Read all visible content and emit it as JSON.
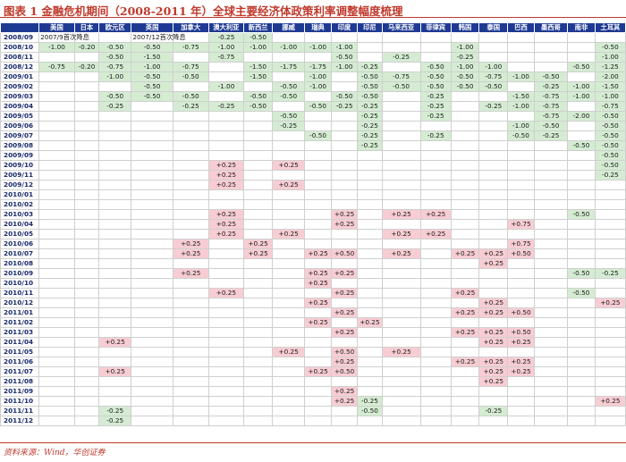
{
  "title": "图表 1   金融危机期间（2008-2011 年）全球主要经济体政策利率调整幅度梳理",
  "source": "资料来源：Wind，华创证券",
  "colors": {
    "cut": "#d5ecd3",
    "hike": "#f7cdd3",
    "header": "#1f3a93",
    "accent": "#c0392b"
  },
  "chart_data": {
    "type": "table",
    "columns": [
      "",
      "美国",
      "日本",
      "欧元区",
      "英国",
      "加拿大",
      "澳大利亚",
      "新西兰",
      "挪威",
      "瑞典",
      "印度",
      "印尼",
      "马来西亚",
      "菲律宾",
      "韩国",
      "泰国",
      "巴西",
      "墨西哥",
      "南非",
      "土耳其"
    ],
    "rows": [
      [
        "2008/09",
        "-",
        "-",
        "-",
        "-",
        "-",
        "-0.25",
        "-0.50",
        "-",
        "-",
        "-",
        "-",
        "-",
        "-",
        "-",
        "-",
        "-",
        "-",
        "-",
        "-"
      ],
      [
        "2008/10",
        "-1.00",
        "-0.20",
        "-0.50",
        "-0.50",
        "-0.75",
        "-1.00",
        "-1.00",
        "-1.00",
        "-1.00",
        "-1.00",
        "-",
        "-",
        "-",
        "-1.00",
        "-",
        "-",
        "-",
        "-",
        "-0.50"
      ],
      [
        "2008/11",
        "-",
        "-",
        "-0.50",
        "-1.50",
        "-",
        "-0.75",
        "-",
        "-",
        "-",
        "-0.50",
        "-",
        "-0.25",
        "-",
        "-0.25",
        "-",
        "-",
        "-",
        "-",
        "-1.00"
      ],
      [
        "2008/12",
        "-0.75",
        "-0.20",
        "-0.75",
        "-1.00",
        "-0.75",
        "-",
        "-1.50",
        "-1.75",
        "-1.75",
        "-1.00",
        "-0.25",
        "-",
        "-0.50",
        "-1.00",
        "-1.00",
        "-",
        "-",
        "-0.50",
        "-1.25"
      ],
      [
        "2009/01",
        "-",
        "-",
        "-1.00",
        "-0.50",
        "-0.50",
        "-",
        "-1.50",
        "-",
        "-1.00",
        "-",
        "-0.50",
        "-0.75",
        "-0.50",
        "-0.50",
        "-0.75",
        "-1.00",
        "-0.50",
        "-",
        "-2.00"
      ],
      [
        "2009/02",
        "-",
        "-",
        "-",
        "-0.50",
        "-",
        "-1.00",
        "-",
        "-0.50",
        "-1.00",
        "-",
        "-0.50",
        "-0.50",
        "-0.50",
        "-0.50",
        "-0.50",
        "-",
        "-0.25",
        "-1.00",
        "-1.50"
      ],
      [
        "2009/03",
        "-",
        "-",
        "-0.50",
        "-0.50",
        "-0.50",
        "-",
        "-0.50",
        "-0.50",
        "-",
        "-0.50",
        "-0.50",
        "-",
        "-0.25",
        "-",
        "-",
        "-1.50",
        "-0.75",
        "-1.00",
        "-1.00"
      ],
      [
        "2009/04",
        "-",
        "-",
        "-0.25",
        "-",
        "-0.25",
        "-0.25",
        "-0.50",
        "-",
        "-0.50",
        "-0.25",
        "-0.25",
        "-",
        "-0.25",
        "-",
        "-0.25",
        "-1.00",
        "-0.75",
        "-",
        "-0.75"
      ],
      [
        "2009/05",
        "-",
        "-",
        "-",
        "-",
        "-",
        "-",
        "-",
        "-0.50",
        "-",
        "-",
        "-0.25",
        "-",
        "-0.25",
        "-",
        "-",
        "-",
        "-0.75",
        "-2.00",
        "-0.50"
      ],
      [
        "2009/06",
        "-",
        "-",
        "-",
        "-",
        "-",
        "-",
        "-",
        "-0.25",
        "-",
        "-",
        "-0.25",
        "-",
        "-",
        "-",
        "-",
        "-1.00",
        "-0.50",
        "-",
        "-0.50"
      ],
      [
        "2009/07",
        "-",
        "-",
        "-",
        "-",
        "-",
        "-",
        "-",
        "-",
        "-0.50",
        "-",
        "-0.25",
        "-",
        "-0.25",
        "-",
        "-",
        "-0.50",
        "-0.25",
        "-",
        "-0.50"
      ],
      [
        "2009/08",
        "-",
        "-",
        "-",
        "-",
        "-",
        "-",
        "-",
        "-",
        "-",
        "-",
        "-0.25",
        "-",
        "-",
        "-",
        "-",
        "-",
        "-",
        "-0.50",
        "-0.50"
      ],
      [
        "2009/09",
        "-",
        "-",
        "-",
        "-",
        "-",
        "-",
        "-",
        "-",
        "-",
        "-",
        "-",
        "-",
        "-",
        "-",
        "-",
        "-",
        "-",
        "-",
        "-0.50"
      ],
      [
        "2009/10",
        "-",
        "-",
        "-",
        "-",
        "-",
        "+0.25",
        "-",
        "+0.25",
        "-",
        "-",
        "-",
        "-",
        "-",
        "-",
        "-",
        "-",
        "-",
        "-",
        "-0.50"
      ],
      [
        "2009/11",
        "-",
        "-",
        "-",
        "-",
        "-",
        "+0.25",
        "-",
        "-",
        "-",
        "-",
        "-",
        "-",
        "-",
        "-",
        "-",
        "-",
        "-",
        "-",
        "-0.25"
      ],
      [
        "2009/12",
        "-",
        "-",
        "-",
        "-",
        "-",
        "+0.25",
        "-",
        "+0.25",
        "-",
        "-",
        "-",
        "-",
        "-",
        "-",
        "-",
        "-",
        "-",
        "-",
        "-"
      ],
      [
        "2010/01",
        "-",
        "-",
        "-",
        "-",
        "-",
        "-",
        "-",
        "-",
        "-",
        "-",
        "-",
        "-",
        "-",
        "-",
        "-",
        "-",
        "-",
        "-",
        "-"
      ],
      [
        "2010/02",
        "-",
        "-",
        "-",
        "-",
        "-",
        "-",
        "-",
        "-",
        "-",
        "-",
        "-",
        "-",
        "-",
        "-",
        "-",
        "-",
        "-",
        "-",
        "-"
      ],
      [
        "2010/03",
        "-",
        "-",
        "-",
        "-",
        "-",
        "+0.25",
        "-",
        "-",
        "-",
        "+0.25",
        "-",
        "+0.25",
        "+0.25",
        "-",
        "-",
        "-",
        "-",
        "-0.50",
        "-"
      ],
      [
        "2010/04",
        "-",
        "-",
        "-",
        "-",
        "-",
        "+0.25",
        "-",
        "-",
        "-",
        "+0.25",
        "-",
        "-",
        "-",
        "-",
        "-",
        "+0.75",
        "-",
        "-",
        "-"
      ],
      [
        "2010/05",
        "-",
        "-",
        "-",
        "-",
        "-",
        "+0.25",
        "-",
        "+0.25",
        "-",
        "-",
        "-",
        "+0.25",
        "+0.25",
        "-",
        "-",
        "-",
        "-",
        "-",
        "-"
      ],
      [
        "2010/06",
        "-",
        "-",
        "-",
        "-",
        "+0.25",
        "-",
        "+0.25",
        "-",
        "-",
        "-",
        "-",
        "-",
        "-",
        "-",
        "-",
        "+0.75",
        "-",
        "-",
        "-"
      ],
      [
        "2010/07",
        "-",
        "-",
        "-",
        "-",
        "+0.25",
        "-",
        "+0.25",
        "-",
        "+0.25",
        "+0.50",
        "-",
        "+0.25",
        "-",
        "+0.25",
        "+0.25",
        "+0.50",
        "-",
        "-",
        "-"
      ],
      [
        "2010/08",
        "-",
        "-",
        "-",
        "-",
        "-",
        "-",
        "-",
        "-",
        "-",
        "-",
        "-",
        "-",
        "-",
        "-",
        "+0.25",
        "-",
        "-",
        "-",
        "-"
      ],
      [
        "2010/09",
        "-",
        "-",
        "-",
        "-",
        "+0.25",
        "-",
        "-",
        "-",
        "+0.25",
        "+0.25",
        "-",
        "-",
        "-",
        "-",
        "-",
        "-",
        "-",
        "-0.50",
        "-0.25"
      ],
      [
        "2010/10",
        "-",
        "-",
        "-",
        "-",
        "-",
        "-",
        "-",
        "-",
        "+0.25",
        "-",
        "-",
        "-",
        "-",
        "-",
        "-",
        "-",
        "-",
        "-",
        "-"
      ],
      [
        "2010/11",
        "-",
        "-",
        "-",
        "-",
        "-",
        "+0.25",
        "-",
        "-",
        "-",
        "+0.25",
        "-",
        "-",
        "-",
        "+0.25",
        "-",
        "-",
        "-",
        "-0.50",
        "-"
      ],
      [
        "2010/12",
        "-",
        "-",
        "-",
        "-",
        "-",
        "-",
        "-",
        "-",
        "+0.25",
        "-",
        "-",
        "-",
        "-",
        "-",
        "+0.25",
        "-",
        "-",
        "-",
        "+0.25"
      ],
      [
        "2011/01",
        "-",
        "-",
        "-",
        "-",
        "-",
        "-",
        "-",
        "-",
        "-",
        "+0.25",
        "-",
        "-",
        "-",
        "+0.25",
        "+0.25",
        "+0.50",
        "-",
        "-",
        "-"
      ],
      [
        "2011/02",
        "-",
        "-",
        "-",
        "-",
        "-",
        "-",
        "-",
        "-",
        "+0.25",
        "-",
        "+0.25",
        "-",
        "-",
        "-",
        "-",
        "-",
        "-",
        "-",
        "-"
      ],
      [
        "2011/03",
        "-",
        "-",
        "-",
        "-",
        "-",
        "-",
        "-",
        "-",
        "-",
        "+0.25",
        "-",
        "-",
        "-",
        "+0.25",
        "+0.25",
        "+0.50",
        "-",
        "-",
        "-"
      ],
      [
        "2011/04",
        "-",
        "-",
        "+0.25",
        "-",
        "-",
        "-",
        "-",
        "-",
        "-",
        "-",
        "-",
        "-",
        "-",
        "-",
        "+0.25",
        "+0.25",
        "-",
        "-",
        "-"
      ],
      [
        "2011/05",
        "-",
        "-",
        "-",
        "-",
        "-",
        "-",
        "-",
        "+0.25",
        "-",
        "+0.50",
        "-",
        "+0.25",
        "-",
        "-",
        "-",
        "-",
        "-",
        "-",
        "-"
      ],
      [
        "2011/06",
        "-",
        "-",
        "-",
        "-",
        "-",
        "-",
        "-",
        "-",
        "-",
        "+0.25",
        "-",
        "-",
        "-",
        "+0.25",
        "+0.25",
        "+0.25",
        "-",
        "-",
        "-"
      ],
      [
        "2011/07",
        "-",
        "-",
        "+0.25",
        "-",
        "-",
        "-",
        "-",
        "-",
        "+0.25",
        "+0.50",
        "-",
        "-",
        "-",
        "-",
        "+0.25",
        "+0.25",
        "-",
        "-",
        "-"
      ],
      [
        "2011/08",
        "-",
        "-",
        "-",
        "-",
        "-",
        "-",
        "-",
        "-",
        "-",
        "-",
        "-",
        "-",
        "-",
        "-",
        "+0.25",
        "-",
        "-",
        "-",
        "-"
      ],
      [
        "2011/09",
        "-",
        "-",
        "-",
        "-",
        "-",
        "-",
        "-",
        "-",
        "-",
        "+0.25",
        "-",
        "-",
        "-",
        "-",
        "-",
        "-",
        "-",
        "-",
        "-"
      ],
      [
        "2011/10",
        "-",
        "-",
        "-",
        "-",
        "-",
        "-",
        "-",
        "-",
        "-",
        "+0.25",
        "-0.25",
        "-",
        "-",
        "-",
        "-",
        "-",
        "-",
        "-",
        "+0.25"
      ],
      [
        "2011/11",
        "-",
        "-",
        "-0.25",
        "-",
        "-",
        "-",
        "-",
        "-",
        "-",
        "-",
        "-0.50",
        "-",
        "-",
        "-",
        "-0.25",
        "-",
        "-",
        "-",
        "-"
      ],
      [
        "2011/12",
        "-",
        "-",
        "-0.25",
        "-",
        "-",
        "-",
        "-",
        "-",
        "-",
        "-",
        "-",
        "-",
        "-",
        "-",
        "-",
        "-",
        "-",
        "-",
        "-"
      ]
    ],
    "notes": [
      {
        "row": 0,
        "col": 1,
        "text": "2007/9首次降息"
      },
      {
        "row": 0,
        "col": 4,
        "text": "2007/12首次降息"
      }
    ]
  }
}
